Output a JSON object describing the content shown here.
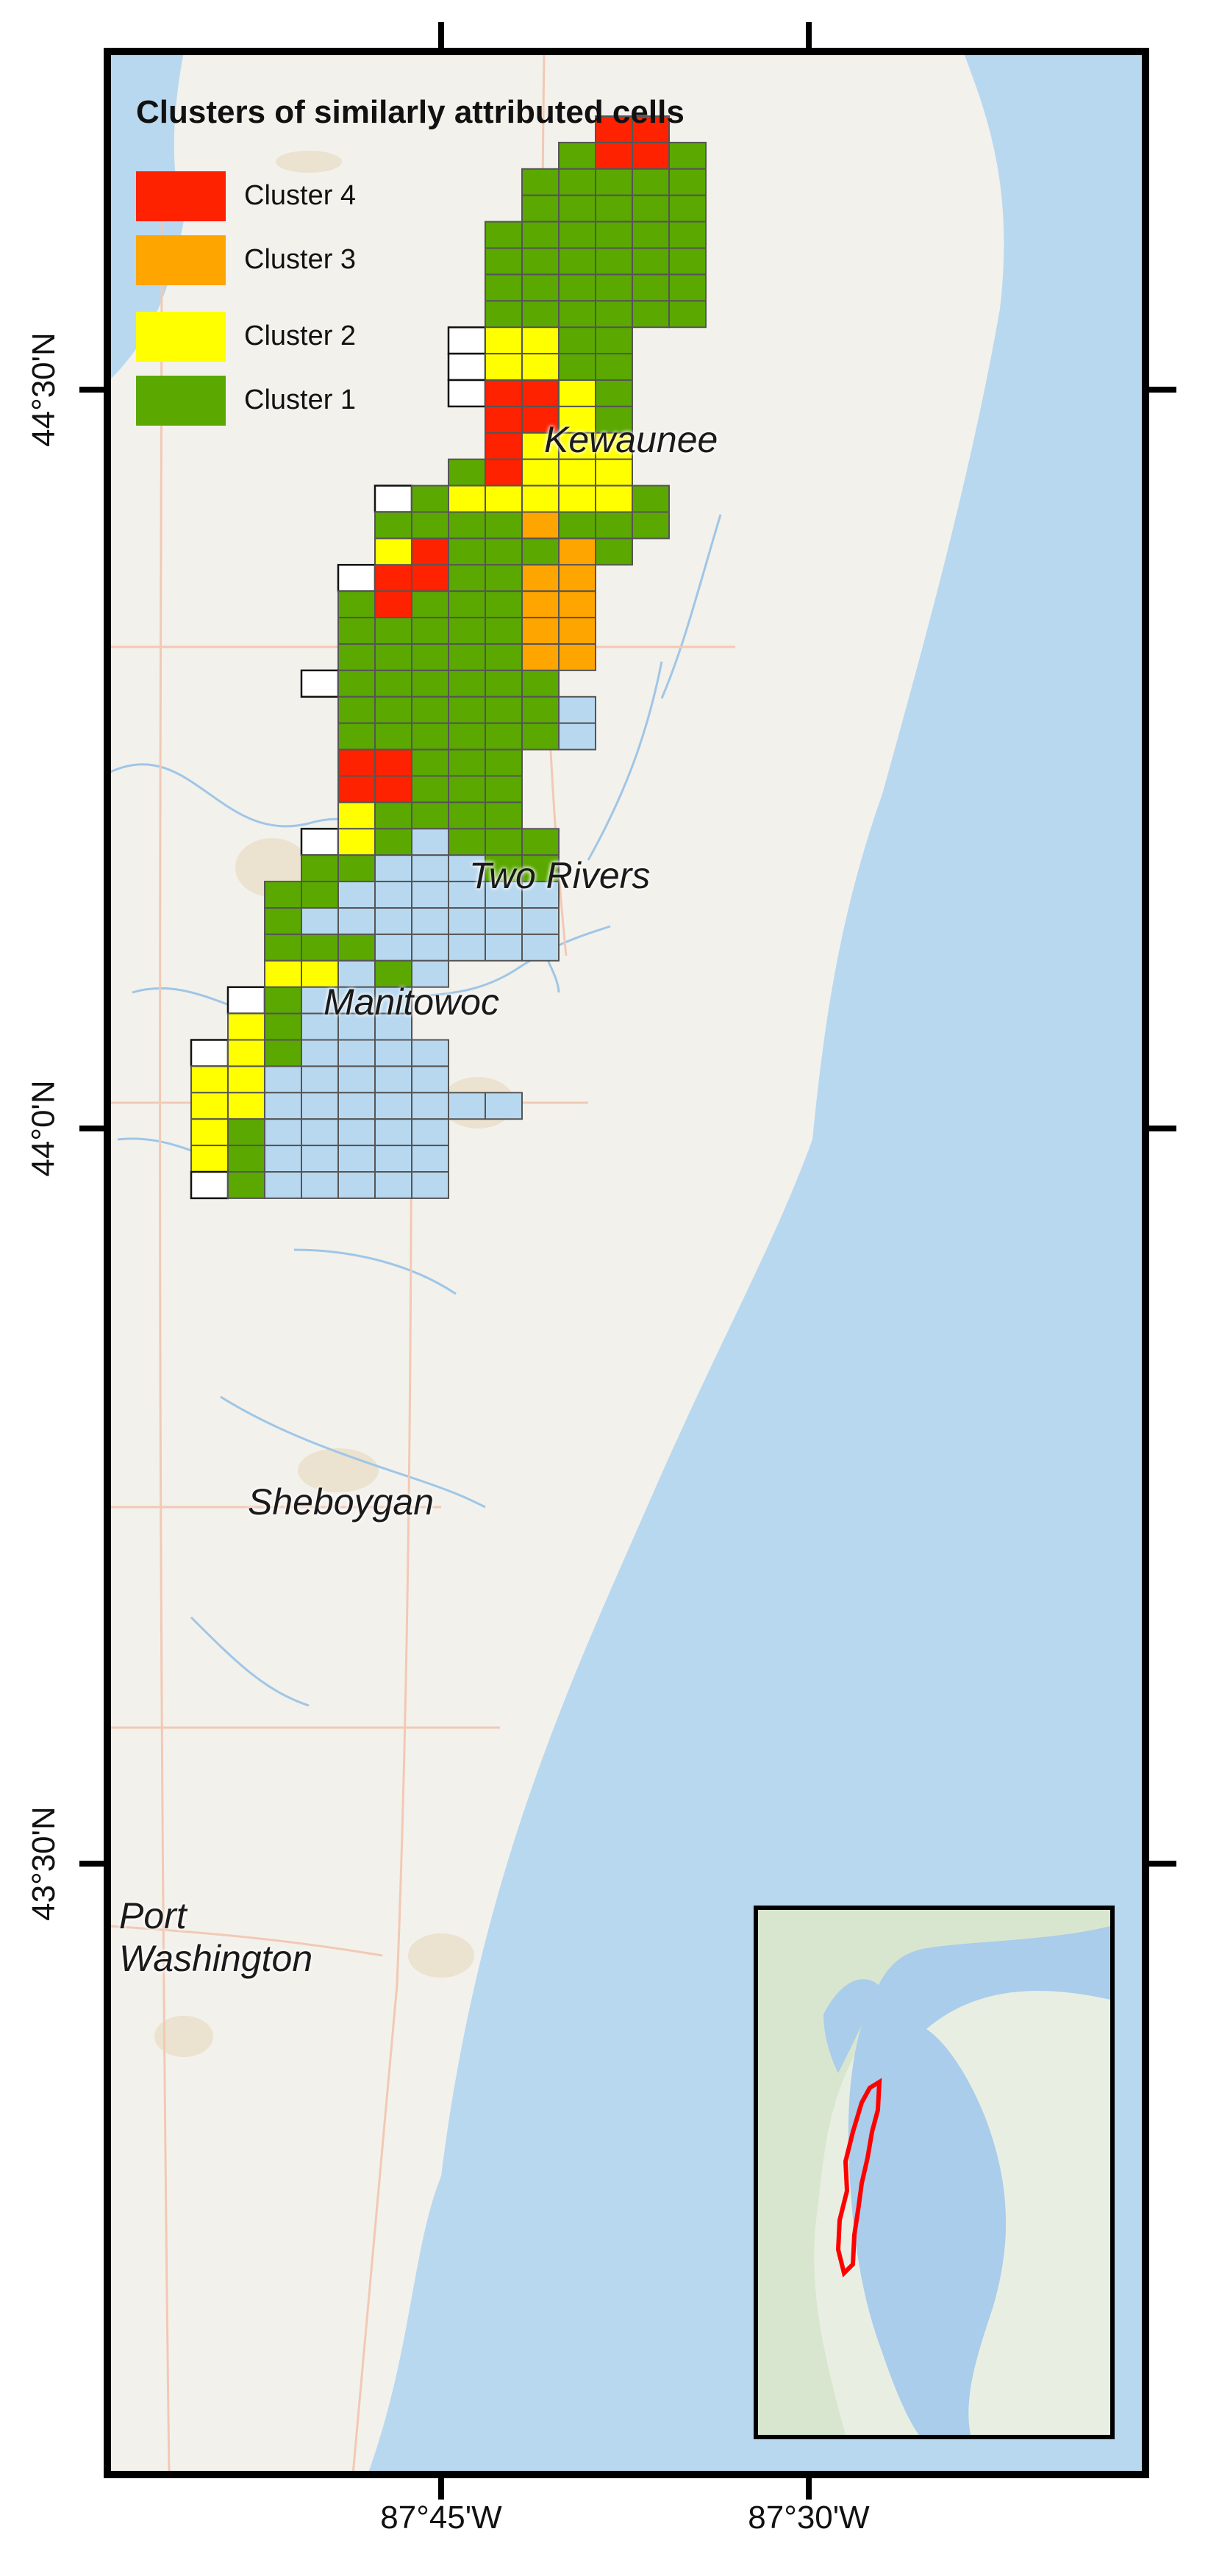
{
  "map": {
    "legend_title": "Clusters of similarly attributed cells",
    "legend": [
      {
        "label": "Cluster 4",
        "color": "#ff2200"
      },
      {
        "label": "Cluster 3",
        "color": "#ffa500"
      },
      {
        "label": "Cluster 2",
        "color": "#ffff00"
      },
      {
        "label": "Cluster 1",
        "color": "#5aa800"
      }
    ],
    "latitude_labels": [
      "44°30'N",
      "44°0'N",
      "43°30'N"
    ],
    "longitude_labels": [
      "87°45'W",
      "87°30'W"
    ],
    "places": [
      "Kewaunee",
      "Two Rivers",
      "Manitowoc",
      "Sheboygan",
      "Port\nWashington"
    ],
    "inset": {
      "highlight_color": "#ff0000"
    },
    "colors": {
      "land": "#f3f1ec",
      "water": "#b8d8ef",
      "empty_cell_land": "#ffffff"
    }
  },
  "grid_rows": [
    {
      "start": 13,
      "cells": "44"
    },
    {
      "start": 12,
      "cells": "1441"
    },
    {
      "start": 11,
      "cells": "11111"
    },
    {
      "start": 11,
      "cells": "11111"
    },
    {
      "start": 10,
      "cells": "111111"
    },
    {
      "start": 10,
      "cells": "111111"
    },
    {
      "start": 10,
      "cells": "111111"
    },
    {
      "start": 10,
      "cells": "111111"
    },
    {
      "start": 9,
      "cells": "E2211"
    },
    {
      "start": 9,
      "cells": "E2211"
    },
    {
      "start": 9,
      "cells": "E4421"
    },
    {
      "start": 10,
      "cells": "4421"
    },
    {
      "start": 10,
      "cells": "4222"
    },
    {
      "start": 9,
      "cells": "14222"
    },
    {
      "start": 7,
      "cells": "E1222221"
    },
    {
      "start": 7,
      "cells": "11113111"
    },
    {
      "start": 7,
      "cells": "2411131"
    },
    {
      "start": 6,
      "cells": "E441133"
    },
    {
      "start": 6,
      "cells": "1411133"
    },
    {
      "start": 6,
      "cells": "1111133"
    },
    {
      "start": 6,
      "cells": "1111133"
    },
    {
      "start": 5,
      "cells": "E111111"
    },
    {
      "start": 6,
      "cells": "111111W"
    },
    {
      "start": 6,
      "cells": "111111W"
    },
    {
      "start": 6,
      "cells": "44111"
    },
    {
      "start": 6,
      "cells": "44111"
    },
    {
      "start": 6,
      "cells": "21111"
    },
    {
      "start": 5,
      "cells": "E21W111"
    },
    {
      "start": 5,
      "cells": "11WWW11"
    },
    {
      "start": 4,
      "cells": "11WWWWWW"
    },
    {
      "start": 4,
      "cells": "1WWWWWWW"
    },
    {
      "start": 4,
      "cells": "111WWWWW"
    },
    {
      "start": 4,
      "cells": "22W1W"
    },
    {
      "start": 3,
      "cells": "E1WWW"
    },
    {
      "start": 3,
      "cells": "21WWW"
    },
    {
      "start": 2,
      "cells": "E21WWWW"
    },
    {
      "start": 2,
      "cells": "22WWWWW"
    },
    {
      "start": 2,
      "cells": "22WWWWWWW"
    },
    {
      "start": 2,
      "cells": "21WWWWW"
    },
    {
      "start": 2,
      "cells": "21WWWWW"
    },
    {
      "start": 2,
      "cells": "E1WWWWW"
    }
  ]
}
